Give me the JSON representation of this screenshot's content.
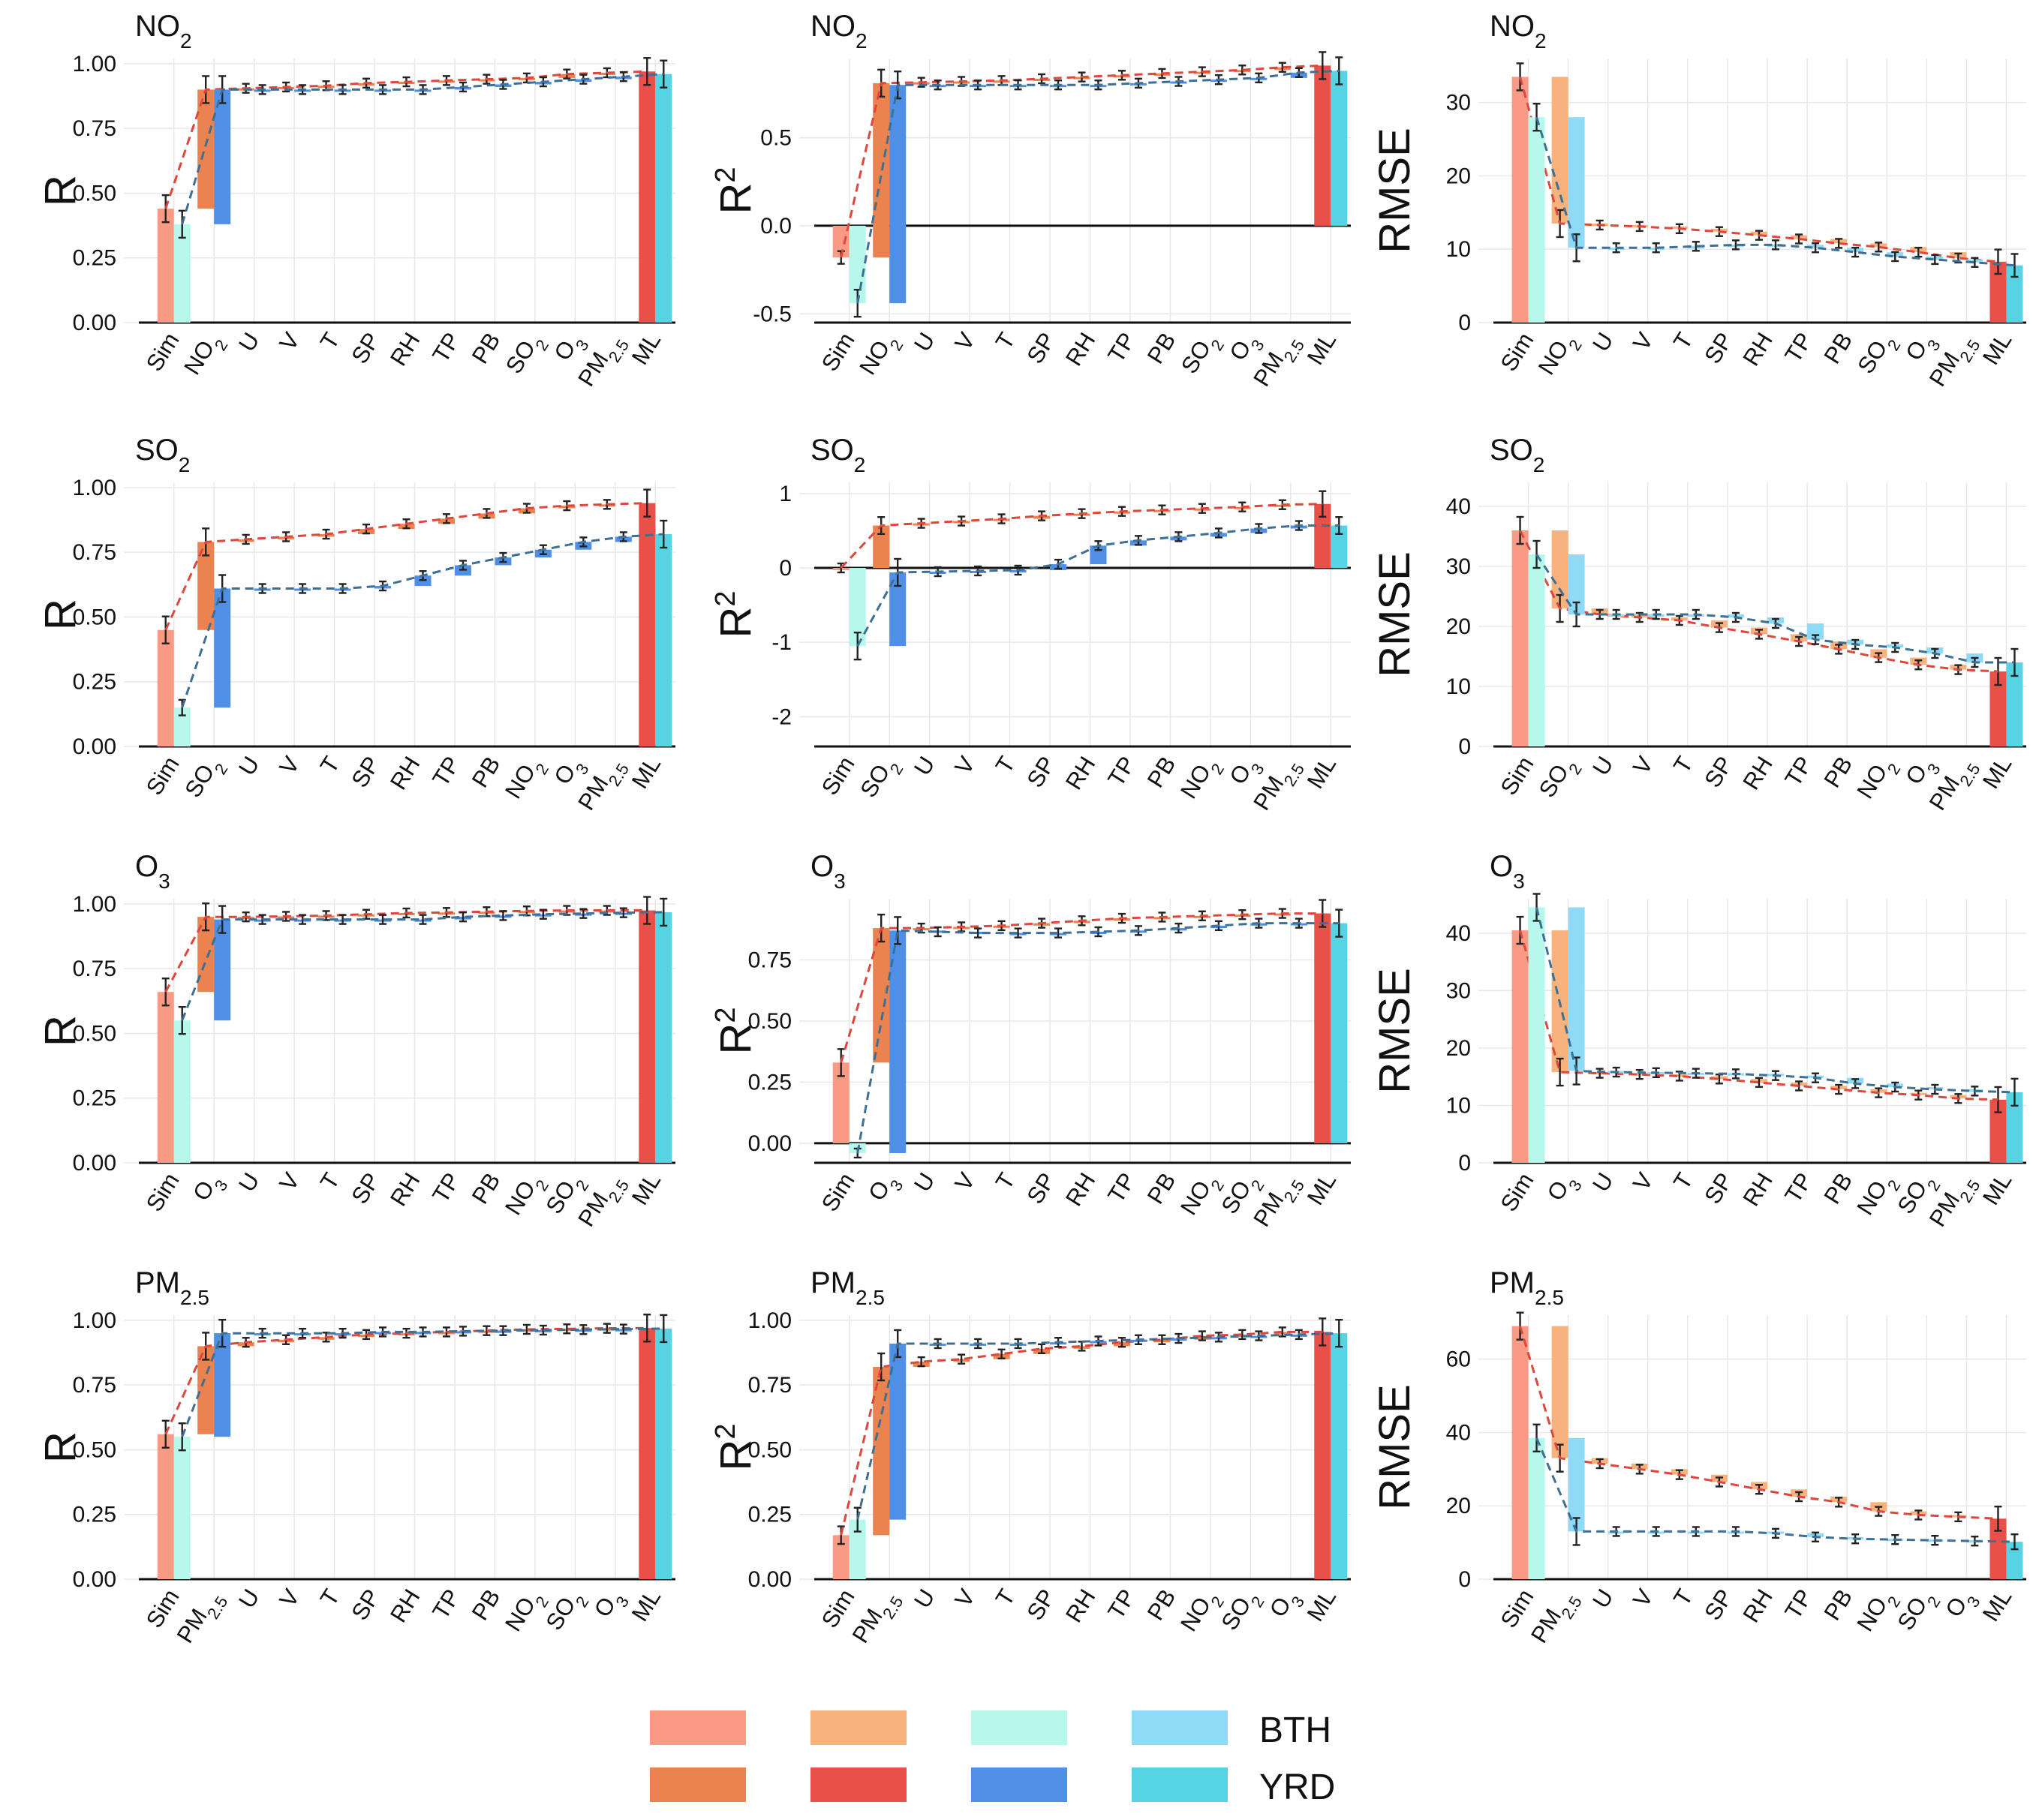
{
  "colors": {
    "BTH_sim": "#f99a84",
    "BTH_bar": "#ea834f",
    "BTH_light": "#f7b27d",
    "BTH_ml": "#e8504a",
    "YRD_sim": "#b7f8ec",
    "YRD_bar": "#4f8fe6",
    "YRD_light": "#8fdaf7",
    "YRD_ml": "#56d4e4",
    "BTH_line": "#e0473c",
    "YRD_line": "#3f6f92"
  },
  "legend": {
    "rows": [
      "BTH",
      "YRD"
    ]
  },
  "chart_data": [
    {
      "type": "bar",
      "title_base": "NO",
      "title_sub": "2",
      "ylabel_base": "R",
      "ylabel_sup": "",
      "ylim": [
        0,
        1.02
      ],
      "yticks": [
        0,
        0.25,
        0.5,
        0.75,
        1
      ],
      "tick_decimals": 2,
      "zero_line": false,
      "categories": [
        "Sim",
        "NO2",
        "U",
        "V",
        "T",
        "SP",
        "RH",
        "TP",
        "PB",
        "SO2",
        "O3",
        "PM2.5",
        "ML"
      ],
      "series": [
        {
          "name": "BTH",
          "values": [
            0.44,
            0.9,
            0.905,
            0.91,
            0.915,
            0.925,
            0.93,
            0.935,
            0.94,
            0.945,
            0.96,
            0.965,
            0.97
          ]
        },
        {
          "name": "YRD",
          "values": [
            0.38,
            0.9,
            0.9,
            0.9,
            0.9,
            0.9,
            0.9,
            0.91,
            0.92,
            0.93,
            0.94,
            0.95,
            0.96
          ]
        }
      ]
    },
    {
      "type": "bar",
      "title_base": "NO",
      "title_sub": "2",
      "ylabel_base": "R",
      "ylabel_sup": "2",
      "ylim": [
        -0.55,
        0.95
      ],
      "yticks": [
        -0.5,
        0,
        0.5
      ],
      "tick_decimals": 1,
      "zero_line": true,
      "categories": [
        "Sim",
        "NO2",
        "U",
        "V",
        "T",
        "SP",
        "RH",
        "TP",
        "PB",
        "SO2",
        "O3",
        "PM2.5",
        "ML"
      ],
      "series": [
        {
          "name": "BTH",
          "values": [
            -0.18,
            0.81,
            0.815,
            0.82,
            0.825,
            0.835,
            0.845,
            0.855,
            0.865,
            0.875,
            0.885,
            0.9,
            0.91
          ]
        },
        {
          "name": "YRD",
          "values": [
            -0.44,
            0.8,
            0.8,
            0.8,
            0.8,
            0.8,
            0.8,
            0.81,
            0.82,
            0.83,
            0.84,
            0.87,
            0.88
          ]
        }
      ]
    },
    {
      "type": "bar",
      "title_base": "NO",
      "title_sub": "2",
      "ylabel_base": "RMSE",
      "ylabel_sup": "",
      "ylim": [
        0,
        36
      ],
      "yticks": [
        0,
        10,
        20,
        30
      ],
      "tick_decimals": 0,
      "zero_line": false,
      "categories": [
        "Sim",
        "NO2",
        "U",
        "V",
        "T",
        "SP",
        "RH",
        "TP",
        "PB",
        "SO2",
        "O3",
        "PM2.5",
        "ML"
      ],
      "series": [
        {
          "name": "BTH",
          "values": [
            33.5,
            13.5,
            13.3,
            13.1,
            12.8,
            12.4,
            11.9,
            11.4,
            10.8,
            10.3,
            9.6,
            8.8,
            8.3
          ]
        },
        {
          "name": "YRD",
          "values": [
            28,
            10.2,
            10.2,
            10.2,
            10.4,
            10.6,
            10.6,
            10.2,
            9.6,
            9,
            8.6,
            8.2,
            7.8
          ]
        }
      ]
    },
    {
      "type": "bar",
      "title_base": "SO",
      "title_sub": "2",
      "ylabel_base": "R",
      "ylabel_sup": "",
      "ylim": [
        0,
        1.02
      ],
      "yticks": [
        0,
        0.25,
        0.5,
        0.75,
        1
      ],
      "tick_decimals": 2,
      "zero_line": false,
      "categories": [
        "Sim",
        "SO2",
        "U",
        "V",
        "T",
        "SP",
        "RH",
        "TP",
        "PB",
        "NO2",
        "O3",
        "PM2.5",
        "ML"
      ],
      "series": [
        {
          "name": "BTH",
          "values": [
            0.45,
            0.79,
            0.8,
            0.81,
            0.82,
            0.84,
            0.86,
            0.88,
            0.9,
            0.92,
            0.93,
            0.935,
            0.94
          ]
        },
        {
          "name": "YRD",
          "values": [
            0.15,
            0.61,
            0.61,
            0.61,
            0.61,
            0.62,
            0.66,
            0.7,
            0.73,
            0.76,
            0.79,
            0.81,
            0.82
          ]
        }
      ]
    },
    {
      "type": "bar",
      "title_base": "SO",
      "title_sub": "2",
      "ylabel_base": "R",
      "ylabel_sup": "2",
      "ylim": [
        -2.4,
        1.15
      ],
      "yticks": [
        -2,
        -1,
        0,
        1
      ],
      "tick_decimals": 0,
      "zero_line": true,
      "categories": [
        "Sim",
        "SO2",
        "U",
        "V",
        "T",
        "SP",
        "RH",
        "TP",
        "PB",
        "NO2",
        "O3",
        "PM2.5",
        "ML"
      ],
      "series": [
        {
          "name": "BTH",
          "values": [
            0,
            0.57,
            0.6,
            0.63,
            0.66,
            0.7,
            0.73,
            0.76,
            0.78,
            0.8,
            0.82,
            0.85,
            0.86
          ]
        },
        {
          "name": "YRD",
          "values": [
            -1.05,
            -0.06,
            -0.05,
            -0.04,
            -0.03,
            0.05,
            0.3,
            0.37,
            0.42,
            0.47,
            0.53,
            0.57,
            0.57
          ]
        }
      ]
    },
    {
      "type": "bar",
      "title_base": "SO",
      "title_sub": "2",
      "ylabel_base": "RMSE",
      "ylabel_sup": "",
      "ylim": [
        0,
        44
      ],
      "yticks": [
        0,
        10,
        20,
        30,
        40
      ],
      "tick_decimals": 0,
      "zero_line": false,
      "categories": [
        "Sim",
        "SO2",
        "U",
        "V",
        "T",
        "SP",
        "RH",
        "TP",
        "PB",
        "NO2",
        "O3",
        "PM2.5",
        "ML"
      ],
      "series": [
        {
          "name": "BTH",
          "values": [
            36,
            23,
            22,
            21.5,
            21,
            19.8,
            18.7,
            17.5,
            16.2,
            14.8,
            13.6,
            12.8,
            12.5
          ]
        },
        {
          "name": "YRD",
          "values": [
            32,
            22,
            22,
            22,
            22,
            21.5,
            20.5,
            17.8,
            17,
            16.5,
            15.5,
            14,
            14
          ]
        }
      ]
    },
    {
      "type": "bar",
      "title_base": "O",
      "title_sub": "3",
      "ylabel_base": "R",
      "ylabel_sup": "",
      "ylim": [
        0,
        1.02
      ],
      "yticks": [
        0,
        0.25,
        0.5,
        0.75,
        1
      ],
      "tick_decimals": 2,
      "zero_line": false,
      "categories": [
        "Sim",
        "O3",
        "U",
        "V",
        "T",
        "SP",
        "RH",
        "TP",
        "PB",
        "NO2",
        "SO2",
        "PM2.5",
        "ML"
      ],
      "series": [
        {
          "name": "BTH",
          "values": [
            0.66,
            0.95,
            0.95,
            0.952,
            0.955,
            0.96,
            0.965,
            0.967,
            0.97,
            0.973,
            0.975,
            0.975,
            0.975
          ]
        },
        {
          "name": "YRD",
          "values": [
            0.55,
            0.94,
            0.94,
            0.94,
            0.94,
            0.94,
            0.94,
            0.95,
            0.955,
            0.96,
            0.963,
            0.966,
            0.968
          ]
        }
      ]
    },
    {
      "type": "bar",
      "title_base": "O",
      "title_sub": "3",
      "ylabel_base": "R",
      "ylabel_sup": "2",
      "ylim": [
        -0.08,
        1
      ],
      "yticks": [
        0,
        0.25,
        0.5,
        0.75
      ],
      "tick_decimals": 2,
      "zero_line": true,
      "categories": [
        "Sim",
        "O3",
        "U",
        "V",
        "T",
        "SP",
        "RH",
        "TP",
        "PB",
        "NO2",
        "SO2",
        "PM2.5",
        "ML"
      ],
      "series": [
        {
          "name": "BTH",
          "values": [
            0.33,
            0.88,
            0.88,
            0.885,
            0.89,
            0.9,
            0.91,
            0.92,
            0.925,
            0.93,
            0.935,
            0.94,
            0.94
          ]
        },
        {
          "name": "YRD",
          "values": [
            -0.04,
            0.87,
            0.865,
            0.86,
            0.86,
            0.86,
            0.865,
            0.87,
            0.88,
            0.89,
            0.9,
            0.9,
            0.9
          ]
        }
      ]
    },
    {
      "type": "bar",
      "title_base": "O",
      "title_sub": "3",
      "ylabel_base": "RMSE",
      "ylabel_sup": "",
      "ylim": [
        0,
        46
      ],
      "yticks": [
        0,
        10,
        20,
        30,
        40
      ],
      "tick_decimals": 0,
      "zero_line": false,
      "categories": [
        "Sim",
        "O3",
        "U",
        "V",
        "T",
        "SP",
        "RH",
        "TP",
        "PB",
        "NO2",
        "SO2",
        "PM2.5",
        "ML"
      ],
      "series": [
        {
          "name": "BTH",
          "values": [
            40.5,
            15.8,
            15.6,
            15.4,
            15.1,
            14.6,
            14,
            13.4,
            12.8,
            12.2,
            11.8,
            11.2,
            11
          ]
        },
        {
          "name": "YRD",
          "values": [
            44.5,
            16,
            15.8,
            15.7,
            15.6,
            15.5,
            15.2,
            14.8,
            13.8,
            13.2,
            12.8,
            12.5,
            12.3
          ]
        }
      ]
    },
    {
      "type": "bar",
      "title_base": "PM",
      "title_sub": "2.5",
      "ylabel_base": "R",
      "ylabel_sup": "",
      "ylim": [
        0,
        1.02
      ],
      "yticks": [
        0,
        0.25,
        0.5,
        0.75,
        1
      ],
      "tick_decimals": 2,
      "zero_line": false,
      "categories": [
        "Sim",
        "PM2.5",
        "U",
        "V",
        "T",
        "SP",
        "RH",
        "TP",
        "PB",
        "NO2",
        "SO2",
        "O3",
        "ML"
      ],
      "series": [
        {
          "name": "BTH",
          "values": [
            0.56,
            0.9,
            0.915,
            0.925,
            0.935,
            0.945,
            0.95,
            0.955,
            0.96,
            0.965,
            0.967,
            0.969,
            0.97
          ]
        },
        {
          "name": "YRD",
          "values": [
            0.55,
            0.95,
            0.95,
            0.95,
            0.95,
            0.955,
            0.955,
            0.958,
            0.96,
            0.962,
            0.964,
            0.966,
            0.968
          ]
        }
      ]
    },
    {
      "type": "bar",
      "title_base": "PM",
      "title_sub": "2.5",
      "ylabel_base": "R",
      "ylabel_sup": "2",
      "ylim": [
        0,
        1.02
      ],
      "yticks": [
        0,
        0.25,
        0.5,
        0.75,
        1
      ],
      "tick_decimals": 2,
      "zero_line": false,
      "categories": [
        "Sim",
        "PM2.5",
        "U",
        "V",
        "T",
        "SP",
        "RH",
        "TP",
        "PB",
        "NO2",
        "SO2",
        "O3",
        "ML"
      ],
      "series": [
        {
          "name": "BTH",
          "values": [
            0.17,
            0.82,
            0.84,
            0.85,
            0.87,
            0.89,
            0.9,
            0.915,
            0.925,
            0.94,
            0.945,
            0.955,
            0.955
          ]
        },
        {
          "name": "YRD",
          "values": [
            0.23,
            0.91,
            0.91,
            0.91,
            0.91,
            0.915,
            0.92,
            0.925,
            0.93,
            0.935,
            0.94,
            0.945,
            0.95
          ]
        }
      ]
    },
    {
      "type": "bar",
      "title_base": "PM",
      "title_sub": "2.5",
      "ylabel_base": "RMSE",
      "ylabel_sup": "",
      "ylim": [
        0,
        72
      ],
      "yticks": [
        0,
        20,
        40,
        60
      ],
      "tick_decimals": 0,
      "zero_line": false,
      "categories": [
        "Sim",
        "PM2.5",
        "U",
        "V",
        "T",
        "SP",
        "RH",
        "TP",
        "PB",
        "NO2",
        "SO2",
        "O3",
        "ML"
      ],
      "series": [
        {
          "name": "BTH",
          "values": [
            69,
            33,
            31.5,
            30,
            28.5,
            26.5,
            24.5,
            22.5,
            21,
            18.5,
            17.5,
            17,
            16.5
          ]
        },
        {
          "name": "YRD",
          "values": [
            38.5,
            13,
            13,
            13,
            13,
            13,
            12.5,
            11.5,
            11,
            10.8,
            10.6,
            10.4,
            10.2
          ]
        }
      ]
    }
  ]
}
